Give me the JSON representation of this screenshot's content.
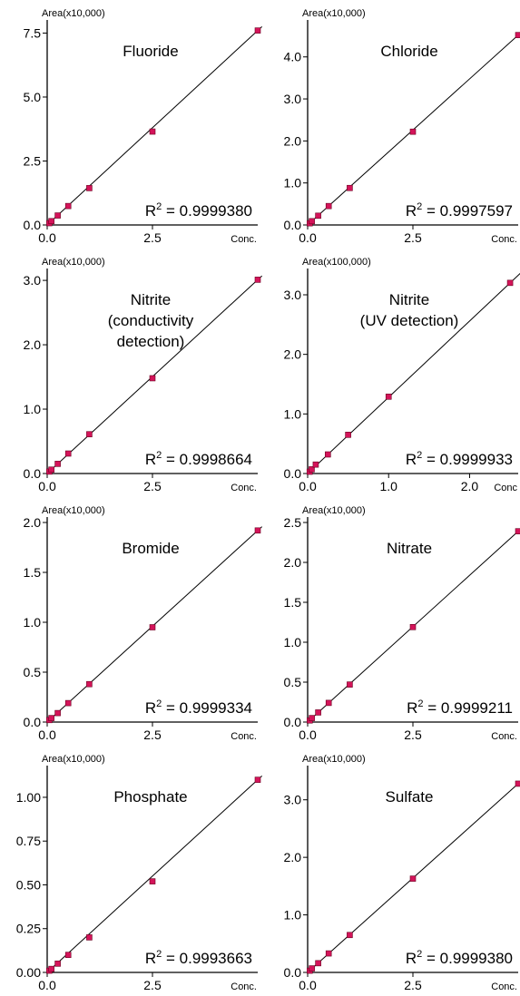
{
  "chart_data": [
    {
      "type": "scatter",
      "title": [
        "Fluoride"
      ],
      "ylabel": "Area(x10,000)",
      "xlabel": "Conc.",
      "xlim": [
        0,
        5.0
      ],
      "ylim": [
        0,
        7.8
      ],
      "xticks": [
        {
          "v": 0,
          "label": "0.0"
        },
        {
          "v": 2.5,
          "label": "2.5"
        }
      ],
      "yticks": [
        {
          "v": 0,
          "label": "0.0"
        },
        {
          "v": 2.5,
          "label": "2.5"
        },
        {
          "v": 5.0,
          "label": "5.0"
        },
        {
          "v": 7.5,
          "label": "7.5"
        }
      ],
      "x": [
        0.05,
        0.1,
        0.25,
        0.5,
        1.0,
        2.5,
        5.0
      ],
      "y": [
        0.07,
        0.15,
        0.37,
        0.74,
        1.44,
        3.65,
        7.6
      ],
      "r2_label": "R",
      "r2_sup": "2",
      "r2_value": " = 0.9999380",
      "series_color": "#d4145a"
    },
    {
      "type": "scatter",
      "title": [
        "Chloride"
      ],
      "ylabel": "Area(x10,000)",
      "xlabel": "Conc.",
      "xlim": [
        0,
        5.0
      ],
      "ylim": [
        0,
        4.75
      ],
      "xticks": [
        {
          "v": 0,
          "label": "0.0"
        },
        {
          "v": 2.5,
          "label": "2.5"
        }
      ],
      "yticks": [
        {
          "v": 0,
          "label": "0.0"
        },
        {
          "v": 1.0,
          "label": "1.0"
        },
        {
          "v": 2.0,
          "label": "2.0"
        },
        {
          "v": 3.0,
          "label": "3.0"
        },
        {
          "v": 4.0,
          "label": "4.0"
        }
      ],
      "x": [
        0.05,
        0.1,
        0.25,
        0.5,
        1.0,
        2.5,
        5.0
      ],
      "y": [
        0.04,
        0.09,
        0.22,
        0.45,
        0.88,
        2.22,
        4.52
      ],
      "r2_label": "R",
      "r2_sup": "2",
      "r2_value": " = 0.9997597",
      "series_color": "#d4145a"
    },
    {
      "type": "scatter",
      "title": [
        "Nitrite",
        "(conductivity",
        "detection)"
      ],
      "ylabel": "Area(x10,000)",
      "xlabel": "Conc.",
      "xlim": [
        0,
        5.0
      ],
      "ylim": [
        0,
        3.1
      ],
      "xticks": [
        {
          "v": 0,
          "label": "0.0"
        },
        {
          "v": 2.5,
          "label": "2.5"
        }
      ],
      "yticks": [
        {
          "v": 0,
          "label": "0.0"
        },
        {
          "v": 1.0,
          "label": "1.0"
        },
        {
          "v": 2.0,
          "label": "2.0"
        },
        {
          "v": 3.0,
          "label": "3.0"
        }
      ],
      "x": [
        0.05,
        0.1,
        0.25,
        0.5,
        1.0,
        2.5,
        5.0
      ],
      "y": [
        0.03,
        0.06,
        0.15,
        0.31,
        0.61,
        1.48,
        3.01
      ],
      "r2_label": "R",
      "r2_sup": "2",
      "r2_value": " = 0.9998664",
      "series_color": "#d4145a"
    },
    {
      "type": "scatter",
      "title": [
        "Nitrite",
        "(UV detection)"
      ],
      "ylabel": "Area(x100,000)",
      "xlabel": "Conc",
      "xlim": [
        0,
        2.6
      ],
      "ylim": [
        0,
        3.35
      ],
      "xticks": [
        {
          "v": 0,
          "label": "0.0"
        },
        {
          "v": 1.0,
          "label": "1.0"
        },
        {
          "v": 2.0,
          "label": "2.0"
        }
      ],
      "yticks": [
        {
          "v": 0,
          "label": "0.0"
        },
        {
          "v": 1.0,
          "label": "1.0"
        },
        {
          "v": 2.0,
          "label": "2.0"
        },
        {
          "v": 3.0,
          "label": "3.0"
        }
      ],
      "x": [
        0.025,
        0.05,
        0.1,
        0.25,
        0.5,
        1.0,
        2.5
      ],
      "y": [
        0.03,
        0.07,
        0.15,
        0.32,
        0.65,
        1.29,
        3.2
      ],
      "r2_label": "R",
      "r2_sup": "2",
      "r2_value": " = 0.9999933",
      "series_color": "#d4145a"
    },
    {
      "type": "scatter",
      "title": [
        "Bromide"
      ],
      "ylabel": "Area(x10,000)",
      "xlabel": "Conc.",
      "xlim": [
        0,
        5.0
      ],
      "ylim": [
        0,
        2.0
      ],
      "xticks": [
        {
          "v": 0,
          "label": "0.0"
        },
        {
          "v": 2.5,
          "label": "2.5"
        }
      ],
      "yticks": [
        {
          "v": 0,
          "label": "0.0"
        },
        {
          "v": 0.5,
          "label": "0.5"
        },
        {
          "v": 1.0,
          "label": "1.0"
        },
        {
          "v": 1.5,
          "label": "1.5"
        },
        {
          "v": 2.0,
          "label": "2.0"
        }
      ],
      "x": [
        0.05,
        0.1,
        0.25,
        0.5,
        1.0,
        2.5,
        5.0
      ],
      "y": [
        0.02,
        0.04,
        0.09,
        0.19,
        0.38,
        0.95,
        1.92
      ],
      "r2_label": "R",
      "r2_sup": "2",
      "r2_value": " = 0.9999334",
      "series_color": "#d4145a"
    },
    {
      "type": "scatter",
      "title": [
        "Nitrate"
      ],
      "ylabel": "Area(x10,000)",
      "xlabel": "Conc.",
      "xlim": [
        0,
        5.0
      ],
      "ylim": [
        0,
        2.5
      ],
      "xticks": [
        {
          "v": 0,
          "label": "0.0"
        },
        {
          "v": 2.5,
          "label": "2.5"
        }
      ],
      "yticks": [
        {
          "v": 0,
          "label": "0.0"
        },
        {
          "v": 0.5,
          "label": "0.5"
        },
        {
          "v": 1.0,
          "label": "1.0"
        },
        {
          "v": 1.5,
          "label": "1.5"
        },
        {
          "v": 2.0,
          "label": "2.0"
        },
        {
          "v": 2.5,
          "label": "2.5"
        }
      ],
      "x": [
        0.05,
        0.1,
        0.25,
        0.5,
        1.0,
        2.5,
        5.0
      ],
      "y": [
        0.02,
        0.05,
        0.12,
        0.24,
        0.47,
        1.19,
        2.39
      ],
      "r2_label": "R",
      "r2_sup": "2",
      "r2_value": " = 0.9999211",
      "series_color": "#d4145a"
    },
    {
      "type": "scatter",
      "title": [
        "Phosphate"
      ],
      "ylabel": "Area(x10,000)",
      "xlabel": "Conc.",
      "xlim": [
        0,
        5.0
      ],
      "ylim": [
        0,
        1.15
      ],
      "xticks": [
        {
          "v": 0,
          "label": "0.0"
        },
        {
          "v": 2.5,
          "label": "2.5"
        }
      ],
      "yticks": [
        {
          "v": 0,
          "label": "0.00"
        },
        {
          "v": 0.25,
          "label": "0.25"
        },
        {
          "v": 0.5,
          "label": "0.50"
        },
        {
          "v": 0.75,
          "label": "0.75"
        },
        {
          "v": 1.0,
          "label": "1.00"
        }
      ],
      "x": [
        0.05,
        0.1,
        0.25,
        0.5,
        1.0,
        2.5,
        5.0
      ],
      "y": [
        0.01,
        0.02,
        0.05,
        0.1,
        0.2,
        0.52,
        1.1
      ],
      "r2_label": "R",
      "r2_sup": "2",
      "r2_value": " = 0.9993663",
      "series_color": "#d4145a"
    },
    {
      "type": "scatter",
      "title": [
        "Sulfate"
      ],
      "ylabel": "Area(x10,000)",
      "xlabel": "Conc.",
      "xlim": [
        0,
        5.0
      ],
      "ylim": [
        0,
        3.5
      ],
      "xticks": [
        {
          "v": 0,
          "label": "0.0"
        },
        {
          "v": 2.5,
          "label": "2.5"
        }
      ],
      "yticks": [
        {
          "v": 0,
          "label": "0.0"
        },
        {
          "v": 1.0,
          "label": "1.0"
        },
        {
          "v": 2.0,
          "label": "2.0"
        },
        {
          "v": 3.0,
          "label": "3.0"
        }
      ],
      "x": [
        0.05,
        0.1,
        0.25,
        0.5,
        1.0,
        2.5,
        5.0
      ],
      "y": [
        0.03,
        0.07,
        0.16,
        0.33,
        0.65,
        1.63,
        3.28
      ],
      "r2_label": "R",
      "r2_sup": "2",
      "r2_value": " = 0.9999380",
      "series_color": "#d4145a"
    }
  ]
}
